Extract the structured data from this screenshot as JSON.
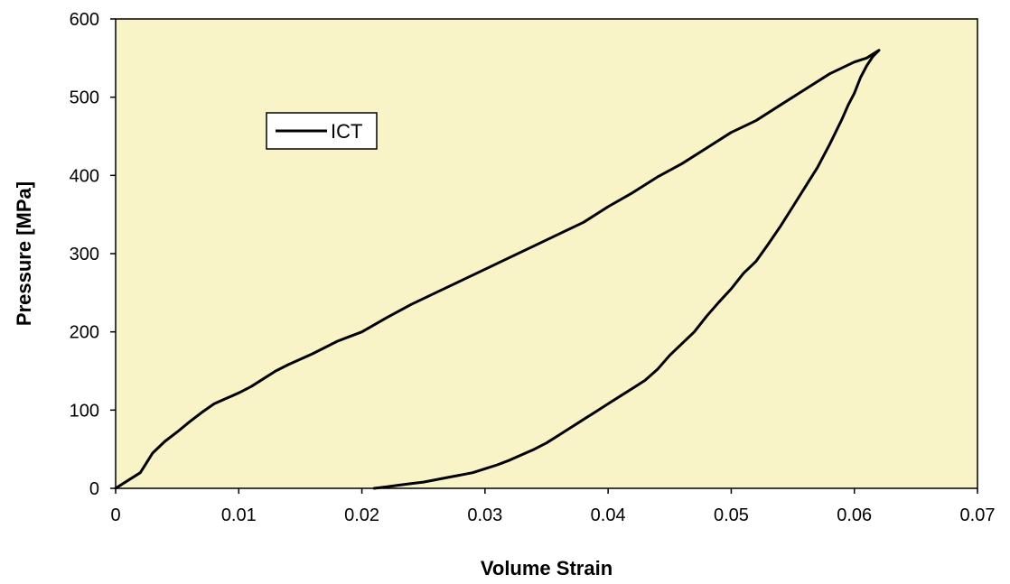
{
  "chart_data": {
    "type": "line",
    "title": "",
    "xlabel": "Volume Strain",
    "ylabel": "Pressure [MPa]",
    "xlim": [
      0,
      0.07
    ],
    "ylim": [
      0,
      600
    ],
    "x_ticks": [
      0,
      0.01,
      0.02,
      0.03,
      0.04,
      0.05,
      0.06,
      0.07
    ],
    "x_tick_labels": [
      "0",
      "0.01",
      "0.02",
      "0.03",
      "0.04",
      "0.05",
      "0.06",
      "0.07"
    ],
    "y_ticks": [
      0,
      100,
      200,
      300,
      400,
      500,
      600
    ],
    "y_tick_labels": [
      "0",
      "100",
      "200",
      "300",
      "400",
      "500",
      "600"
    ],
    "grid": false,
    "legend_position": "upper-left",
    "plot_background": "#F9F4C8",
    "series": [
      {
        "name": "ICT",
        "color": "#000000",
        "x": [
          0,
          0.001,
          0.002,
          0.003,
          0.004,
          0.005,
          0.006,
          0.007,
          0.008,
          0.009,
          0.01,
          0.011,
          0.012,
          0.013,
          0.014,
          0.016,
          0.018,
          0.02,
          0.022,
          0.024,
          0.026,
          0.028,
          0.03,
          0.032,
          0.034,
          0.036,
          0.038,
          0.04,
          0.042,
          0.044,
          0.046,
          0.048,
          0.05,
          0.052,
          0.054,
          0.056,
          0.058,
          0.06,
          0.061,
          0.062,
          0.0615,
          0.061,
          0.0605,
          0.06,
          0.0595,
          0.059,
          0.058,
          0.057,
          0.056,
          0.055,
          0.054,
          0.053,
          0.052,
          0.051,
          0.05,
          0.049,
          0.048,
          0.047,
          0.046,
          0.045,
          0.044,
          0.043,
          0.042,
          0.041,
          0.04,
          0.039,
          0.038,
          0.037,
          0.036,
          0.035,
          0.034,
          0.033,
          0.032,
          0.031,
          0.03,
          0.029,
          0.028,
          0.027,
          0.026,
          0.025,
          0.024,
          0.023,
          0.022,
          0.021
        ],
        "y": [
          0,
          10,
          20,
          45,
          60,
          72,
          85,
          97,
          108,
          115,
          122,
          130,
          140,
          150,
          158,
          172,
          188,
          200,
          218,
          235,
          250,
          265,
          280,
          295,
          310,
          325,
          340,
          360,
          378,
          398,
          415,
          435,
          455,
          470,
          490,
          510,
          530,
          545,
          550,
          560,
          552,
          540,
          525,
          505,
          490,
          472,
          440,
          410,
          385,
          360,
          335,
          312,
          290,
          275,
          255,
          238,
          220,
          200,
          185,
          170,
          152,
          138,
          128,
          118,
          108,
          98,
          88,
          78,
          68,
          58,
          50,
          43,
          36,
          30,
          25,
          20,
          17,
          14,
          11,
          8,
          6,
          4,
          2,
          0
        ]
      }
    ]
  }
}
